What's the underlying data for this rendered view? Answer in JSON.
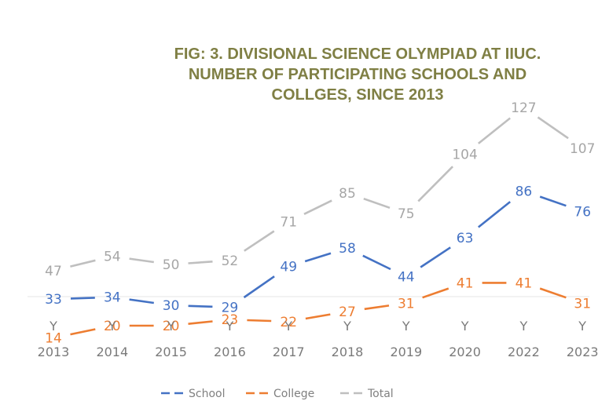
{
  "chart_data": {
    "type": "line",
    "title": "FIG: 3. DIVISIONAL SCIENCE OLYMPIAD AT IIUC. NUMBER OF PARTICIPATING SCHOOLS AND COLLGES, SINCE 2013",
    "title_lines": [
      "FIG: 3. DIVISIONAL SCIENCE OLYMPIAD AT IIUC.",
      "NUMBER OF PARTICIPATING  SCHOOLS AND",
      "COLLGES, SINCE 2013"
    ],
    "categories": [
      [
        "Y",
        "2013"
      ],
      [
        "Y",
        "2014"
      ],
      [
        "Y",
        "2015"
      ],
      [
        "Y",
        "2016"
      ],
      [
        "Y",
        "2017"
      ],
      [
        "Y",
        "2018"
      ],
      [
        "Y",
        "2019"
      ],
      [
        "Y",
        "2020"
      ],
      [
        "Y",
        "2022"
      ],
      [
        "Y",
        "2023"
      ]
    ],
    "series": [
      {
        "name": "School",
        "color": "#4472c4",
        "values": [
          33,
          34,
          30,
          29,
          49,
          58,
          44,
          63,
          86,
          76
        ]
      },
      {
        "name": "College",
        "color": "#ed7d31",
        "values": [
          14,
          20,
          20,
          23,
          22,
          27,
          31,
          41,
          41,
          31
        ]
      },
      {
        "name": "Total",
        "color": "#bfbfbf",
        "values": [
          47,
          54,
          50,
          52,
          71,
          85,
          75,
          104,
          127,
          107
        ]
      }
    ],
    "line_style": "dashed",
    "data_labels": true,
    "grid": false,
    "legend_position": "bottom",
    "xlabel": "",
    "ylabel": ""
  }
}
